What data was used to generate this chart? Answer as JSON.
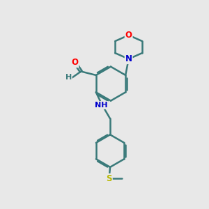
{
  "background_color": "#e8e8e8",
  "bond_color": "#3a7a7a",
  "bond_width": 1.8,
  "atom_colors": {
    "O": "#ff0000",
    "N": "#0000cc",
    "S": "#b8b800",
    "C": "#3a7a7a",
    "H": "#3a7a7a"
  },
  "font_size": 8.5,
  "fig_width": 3.0,
  "fig_height": 3.0,
  "dpi": 100,
  "xlim": [
    0,
    10
  ],
  "ylim": [
    0,
    10
  ]
}
